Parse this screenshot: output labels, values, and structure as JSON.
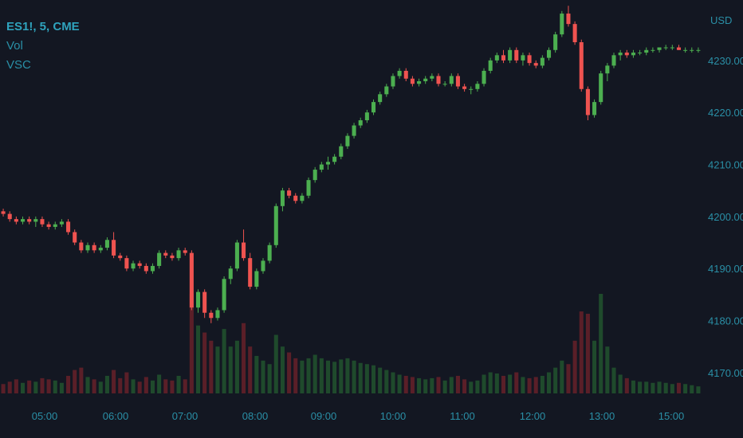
{
  "legend": {
    "symbol": "ES1!, 5, CME",
    "vol": "Vol",
    "vsc": "VSC"
  },
  "chart_data": {
    "type": "candlestick",
    "currency_label": "USD",
    "y_ticks": [
      "4230.00",
      "4220.00",
      "4210.00",
      "4200.00",
      "4190.00",
      "4180.00",
      "4170.00"
    ],
    "x_ticks": [
      "05:00",
      "06:00",
      "07:00",
      "08:00",
      "09:00",
      "10:00",
      "11:00",
      "12:00",
      "13:00",
      "15:00"
    ],
    "ylim": [
      4166,
      4241
    ],
    "colors": {
      "up": "#4caf50",
      "down": "#ef5350",
      "vol_up": "#1f4a2c",
      "vol_down": "#5a1f28",
      "background": "#131722",
      "axis_text": "#2a8fa6"
    },
    "candles": [
      [
        4201.0,
        4201.5,
        4200.0,
        4200.5,
        8
      ],
      [
        4200.5,
        4201.0,
        4199.0,
        4199.5,
        10
      ],
      [
        4199.5,
        4200.0,
        4198.5,
        4199.0,
        12
      ],
      [
        4199.0,
        4200.0,
        4198.5,
        4199.5,
        9
      ],
      [
        4199.5,
        4200.0,
        4198.5,
        4199.0,
        11
      ],
      [
        4199.0,
        4200.0,
        4198.0,
        4199.5,
        10
      ],
      [
        4199.5,
        4200.0,
        4198.0,
        4198.5,
        13
      ],
      [
        4198.5,
        4199.0,
        4197.5,
        4198.0,
        12
      ],
      [
        4198.0,
        4199.0,
        4197.5,
        4198.5,
        11
      ],
      [
        4198.5,
        4199.5,
        4198.0,
        4199.0,
        9
      ],
      [
        4199.0,
        4199.5,
        4196.5,
        4197.0,
        15
      ],
      [
        4197.0,
        4197.5,
        4194.5,
        4195.0,
        20
      ],
      [
        4195.0,
        4195.5,
        4193.0,
        4193.5,
        22
      ],
      [
        4193.5,
        4195.0,
        4193.0,
        4194.5,
        14
      ],
      [
        4194.5,
        4195.0,
        4193.0,
        4193.5,
        12
      ],
      [
        4193.5,
        4194.5,
        4193.0,
        4194.0,
        10
      ],
      [
        4194.0,
        4196.0,
        4193.5,
        4195.5,
        15
      ],
      [
        4195.5,
        4197.0,
        4192.0,
        4192.5,
        20
      ],
      [
        4192.5,
        4193.0,
        4191.5,
        4192.0,
        13
      ],
      [
        4192.0,
        4192.5,
        4189.5,
        4190.0,
        18
      ],
      [
        4190.0,
        4191.5,
        4189.5,
        4191.0,
        12
      ],
      [
        4191.0,
        4191.5,
        4190.0,
        4190.5,
        10
      ],
      [
        4190.5,
        4191.0,
        4189.0,
        4189.5,
        14
      ],
      [
        4189.5,
        4191.0,
        4189.0,
        4190.5,
        11
      ],
      [
        4190.5,
        4193.5,
        4190.0,
        4193.0,
        16
      ],
      [
        4193.0,
        4193.5,
        4192.0,
        4192.5,
        12
      ],
      [
        4192.5,
        4193.0,
        4191.5,
        4192.0,
        11
      ],
      [
        4192.0,
        4194.0,
        4191.5,
        4193.5,
        15
      ],
      [
        4193.5,
        4194.0,
        4192.5,
        4193.0,
        12
      ],
      [
        4193.0,
        4193.5,
        4182.0,
        4182.5,
        85
      ],
      [
        4182.5,
        4186.0,
        4181.5,
        4185.5,
        58
      ],
      [
        4185.5,
        4186.0,
        4180.5,
        4181.5,
        52
      ],
      [
        4181.5,
        4182.0,
        4179.5,
        4180.5,
        45
      ],
      [
        4180.5,
        4182.5,
        4180.0,
        4182.0,
        40
      ],
      [
        4182.0,
        4188.5,
        4181.5,
        4188.0,
        55
      ],
      [
        4188.0,
        4190.5,
        4187.0,
        4190.0,
        40
      ],
      [
        4190.0,
        4195.5,
        4189.5,
        4195.0,
        45
      ],
      [
        4195.0,
        4197.5,
        4191.5,
        4192.0,
        60
      ],
      [
        4192.0,
        4193.0,
        4186.0,
        4186.5,
        40
      ],
      [
        4186.5,
        4190.0,
        4186.0,
        4189.5,
        32
      ],
      [
        4189.5,
        4192.0,
        4189.0,
        4191.5,
        28
      ],
      [
        4191.5,
        4195.0,
        4191.0,
        4194.5,
        25
      ],
      [
        4194.5,
        4202.5,
        4194.0,
        4202.0,
        50
      ],
      [
        4202.0,
        4205.5,
        4201.0,
        4205.0,
        40
      ],
      [
        4205.0,
        4205.5,
        4203.5,
        4204.0,
        35
      ],
      [
        4204.0,
        4204.5,
        4202.5,
        4203.0,
        30
      ],
      [
        4203.0,
        4204.5,
        4202.5,
        4204.0,
        28
      ],
      [
        4204.0,
        4207.5,
        4203.5,
        4207.0,
        30
      ],
      [
        4207.0,
        4209.5,
        4206.5,
        4209.0,
        33
      ],
      [
        4209.0,
        4210.5,
        4208.5,
        4210.0,
        30
      ],
      [
        4210.0,
        4211.5,
        4209.0,
        4210.5,
        28
      ],
      [
        4210.5,
        4212.0,
        4210.0,
        4211.5,
        27
      ],
      [
        4211.5,
        4214.0,
        4211.0,
        4213.5,
        29
      ],
      [
        4213.5,
        4216.0,
        4213.0,
        4215.5,
        30
      ],
      [
        4215.5,
        4218.0,
        4215.0,
        4217.5,
        28
      ],
      [
        4217.5,
        4219.0,
        4217.0,
        4218.5,
        26
      ],
      [
        4218.5,
        4220.5,
        4218.0,
        4220.0,
        25
      ],
      [
        4220.0,
        4222.5,
        4219.5,
        4222.0,
        24
      ],
      [
        4222.0,
        4224.0,
        4221.5,
        4223.5,
        22
      ],
      [
        4223.5,
        4225.5,
        4223.0,
        4225.0,
        20
      ],
      [
        4225.0,
        4227.5,
        4224.5,
        4227.0,
        18
      ],
      [
        4227.0,
        4228.5,
        4226.5,
        4228.0,
        16
      ],
      [
        4228.0,
        4228.5,
        4226.0,
        4226.5,
        15
      ],
      [
        4226.5,
        4227.0,
        4225.0,
        4225.5,
        14
      ],
      [
        4225.5,
        4226.5,
        4225.0,
        4226.0,
        13
      ],
      [
        4226.0,
        4227.0,
        4225.5,
        4226.5,
        12
      ],
      [
        4226.5,
        4227.5,
        4226.0,
        4227.0,
        13
      ],
      [
        4227.0,
        4227.5,
        4225.0,
        4225.5,
        14
      ],
      [
        4225.5,
        4226.0,
        4225.0,
        4225.5,
        11
      ],
      [
        4225.5,
        4227.5,
        4225.0,
        4227.0,
        14
      ],
      [
        4227.0,
        4227.5,
        4224.5,
        4225.0,
        15
      ],
      [
        4225.0,
        4225.5,
        4224.0,
        4224.5,
        12
      ],
      [
        4224.5,
        4225.0,
        4223.5,
        4224.5,
        10
      ],
      [
        4224.5,
        4226.0,
        4224.0,
        4225.5,
        11
      ],
      [
        4225.5,
        4228.5,
        4225.0,
        4228.0,
        16
      ],
      [
        4228.0,
        4230.5,
        4227.5,
        4230.0,
        18
      ],
      [
        4230.0,
        4231.5,
        4229.5,
        4231.0,
        17
      ],
      [
        4231.0,
        4232.0,
        4229.5,
        4230.0,
        15
      ],
      [
        4230.0,
        4232.5,
        4229.5,
        4232.0,
        16
      ],
      [
        4232.0,
        4232.5,
        4229.5,
        4230.0,
        18
      ],
      [
        4230.0,
        4231.5,
        4229.0,
        4231.0,
        14
      ],
      [
        4231.0,
        4231.5,
        4229.0,
        4229.5,
        13
      ],
      [
        4229.5,
        4230.0,
        4228.5,
        4229.0,
        14
      ],
      [
        4229.0,
        4231.0,
        4228.5,
        4230.5,
        15
      ],
      [
        4230.5,
        4232.5,
        4230.0,
        4232.0,
        18
      ],
      [
        4232.0,
        4235.5,
        4231.5,
        4235.0,
        22
      ],
      [
        4235.0,
        4239.5,
        4234.5,
        4239.0,
        28
      ],
      [
        4239.0,
        4240.5,
        4236.5,
        4237.0,
        25
      ],
      [
        4237.0,
        4237.5,
        4233.0,
        4233.5,
        45
      ],
      [
        4233.5,
        4234.0,
        4224.0,
        4224.5,
        70
      ],
      [
        4224.5,
        4225.0,
        4218.5,
        4219.5,
        68
      ],
      [
        4219.5,
        4222.5,
        4219.0,
        4222.0,
        45
      ],
      [
        4222.0,
        4228.0,
        4221.5,
        4227.5,
        85
      ],
      [
        4227.5,
        4229.5,
        4226.0,
        4229.0,
        40
      ],
      [
        4229.0,
        4231.5,
        4228.5,
        4231.0,
        22
      ],
      [
        4231.0,
        4232.0,
        4230.0,
        4231.5,
        16
      ],
      [
        4231.5,
        4232.0,
        4230.5,
        4231.0,
        13
      ],
      [
        4231.0,
        4232.0,
        4230.5,
        4231.5,
        11
      ],
      [
        4231.5,
        4232.0,
        4231.0,
        4231.5,
        10
      ],
      [
        4231.5,
        4232.5,
        4231.0,
        4232.0,
        10
      ],
      [
        4232.0,
        4232.5,
        4231.5,
        4232.0,
        9
      ],
      [
        4232.0,
        4232.5,
        4231.5,
        4232.5,
        10
      ],
      [
        4232.5,
        4233.0,
        4232.0,
        4232.5,
        9
      ],
      [
        4232.5,
        4233.0,
        4232.0,
        4232.5,
        8
      ],
      [
        4232.5,
        4233.0,
        4232.0,
        4232.0,
        9
      ],
      [
        4232.0,
        4232.5,
        4231.5,
        4232.0,
        8
      ],
      [
        4232.0,
        4232.5,
        4231.5,
        4232.0,
        7
      ],
      [
        4232.0,
        4232.5,
        4231.5,
        4232.0,
        6
      ]
    ]
  }
}
